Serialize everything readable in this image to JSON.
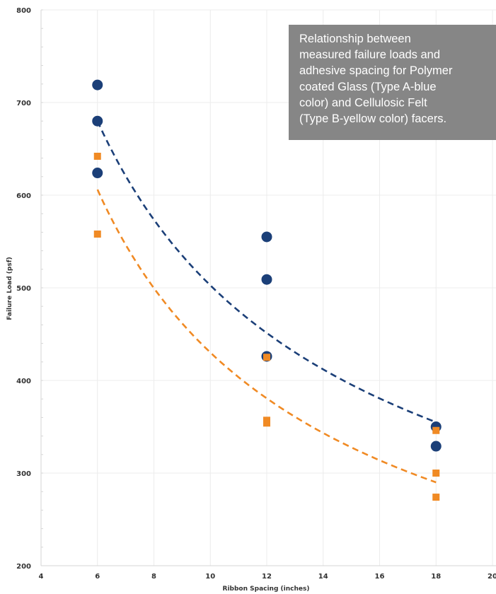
{
  "chart_data": {
    "type": "scatter",
    "title": "",
    "xlabel": "Ribbon Spacing (inches)",
    "ylabel": "Failure Load (psf)",
    "xlim": [
      4,
      20
    ],
    "ylim": [
      200,
      800
    ],
    "x_ticks": [
      "4",
      "6",
      "8",
      "10",
      "12",
      "14",
      "16",
      "18",
      "20"
    ],
    "y_ticks": [
      "200",
      "300",
      "400",
      "500",
      "600",
      "700",
      "800"
    ],
    "grid": true,
    "series": [
      {
        "marker": "circle",
        "color": "#1b3f78",
        "points": [
          [
            6,
            719
          ],
          [
            6,
            680
          ],
          [
            6,
            624
          ],
          [
            12,
            555
          ],
          [
            12,
            509
          ],
          [
            12,
            426
          ],
          [
            18,
            350
          ],
          [
            18,
            329
          ]
        ]
      },
      {
        "marker": "square",
        "color": "#f08a24",
        "points": [
          [
            6,
            642
          ],
          [
            6,
            558
          ],
          [
            12,
            425
          ],
          [
            12,
            357
          ],
          [
            12,
            354
          ],
          [
            18,
            346
          ],
          [
            18,
            300
          ],
          [
            18,
            274
          ]
        ]
      }
    ],
    "trendlines": [
      {
        "color": "#1b3f78",
        "style": "dashed",
        "x_range": [
          6,
          18
        ],
        "y_start": 680,
        "y_end": 355
      },
      {
        "color": "#f08a24",
        "style": "dashed",
        "x_range": [
          6,
          18
        ],
        "y_start": 606,
        "y_end": 290
      }
    ],
    "annotation": {
      "lines": [
        "Relationship between",
        "measured failure loads and",
        "adhesive spacing for Polymer",
        "coated Glass (Type A-blue",
        "color) and Cellulosic Felt",
        "(Type B-yellow color) facers."
      ],
      "position": "top-right"
    }
  }
}
